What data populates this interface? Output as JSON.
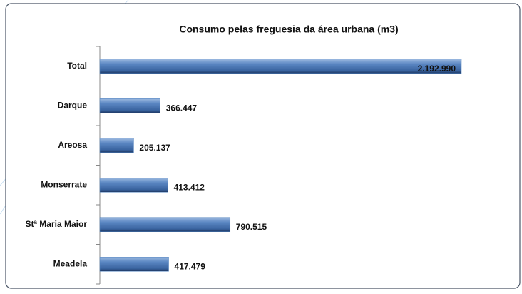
{
  "chart_data": {
    "type": "bar",
    "orientation": "horizontal",
    "title": "Consumo pelas freguesia da área urbana (m3)",
    "categories": [
      "Total",
      "Darque",
      "Areosa",
      "Monserrate",
      "Stª Maria Maior",
      "Meadela"
    ],
    "values": [
      2192990,
      366447,
      205137,
      413412,
      790515,
      417479
    ],
    "value_labels": [
      "2.192.990",
      "366.447",
      "205.137",
      "413.412",
      "790.515",
      "417.479"
    ],
    "color": "#4f81bd",
    "xlim": [
      0,
      2500000
    ]
  }
}
